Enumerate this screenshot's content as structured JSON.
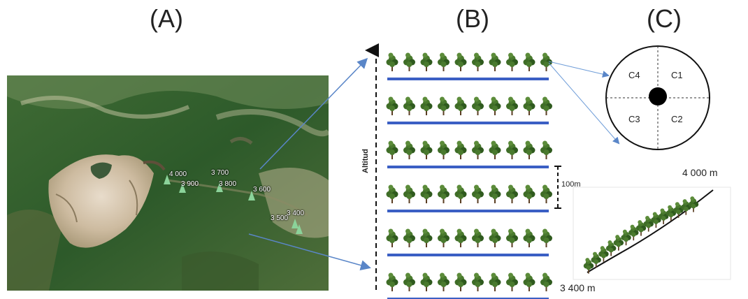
{
  "panels": {
    "a_label": "(A)",
    "b_label": "(B)",
    "c_label": "(C)"
  },
  "map": {
    "altitudes": [
      "4 000",
      "3 900",
      "3 700",
      "3 800",
      "3 600",
      "3 500",
      "3 400"
    ]
  },
  "transect": {
    "axis_label": "Altitud",
    "row_count": 6,
    "trees_per_row": 10,
    "scale_label": "100m"
  },
  "plot": {
    "quadrants": [
      "C4",
      "C1",
      "C3",
      "C2"
    ]
  },
  "slope": {
    "top_elevation": "4 000 m",
    "bottom_elevation": "3 400 m"
  },
  "colors": {
    "line_blue": "#3b5fc4",
    "arrow_blue": "#5a86c8",
    "tree_green": "#4a7a2e",
    "tree_dark": "#2f5a1e"
  }
}
